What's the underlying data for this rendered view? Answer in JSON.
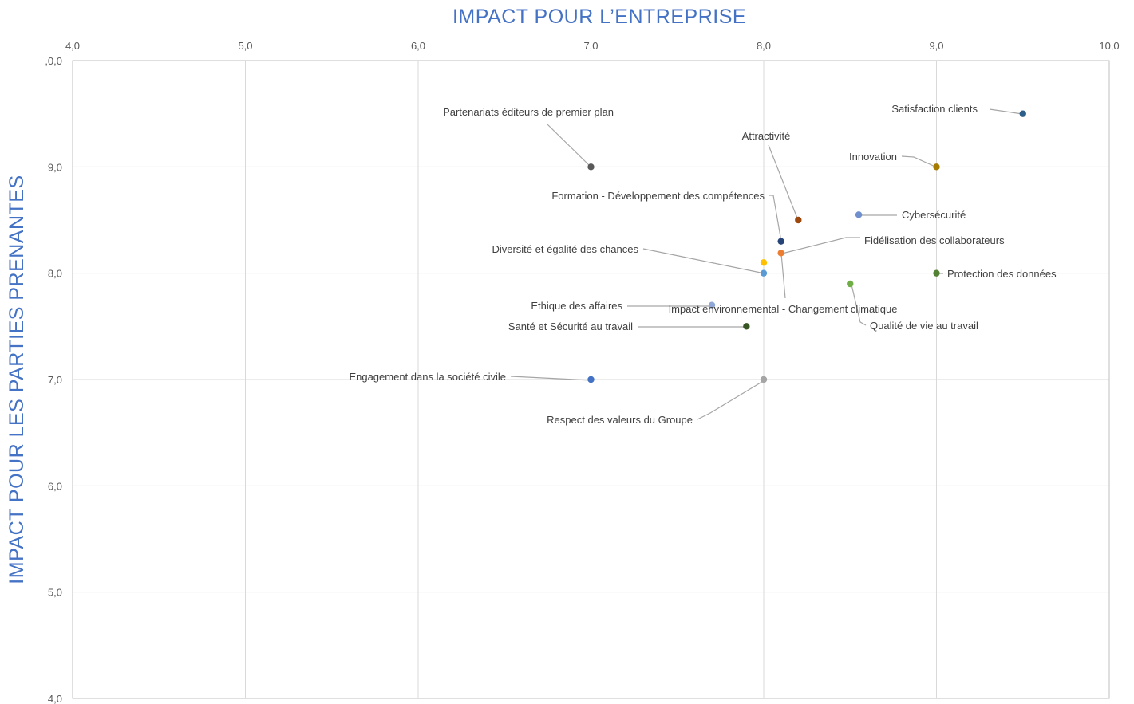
{
  "chart_data": {
    "type": "scatter",
    "title": "",
    "xlabel": "IMPACT POUR L’ENTREPRISE",
    "ylabel": "IMPACT POUR LES PARTIES PRENANTES",
    "xlim": [
      4,
      10
    ],
    "ylim": [
      4,
      10
    ],
    "x_ticks": [
      "4,0",
      "5,0",
      "6,0",
      "7,0",
      "8,0",
      "9,0",
      "10,0"
    ],
    "y_ticks": [
      "4,0",
      "5,0",
      "6,0",
      "7,0",
      "8,0",
      "9,0",
      ",0,0"
    ],
    "grid": true,
    "legend": "none",
    "points": [
      {
        "label": "Satisfaction clients",
        "x": 9.5,
        "y": 9.5,
        "color": "#2e5f8a"
      },
      {
        "label": "Partenariats éditeurs de premier plan",
        "x": 7.0,
        "y": 9.0,
        "color": "#595959"
      },
      {
        "label": "Innovation",
        "x": 9.0,
        "y": 9.0,
        "color": "#a57c00"
      },
      {
        "label": "Attractivité",
        "x": 8.2,
        "y": 8.5,
        "color": "#9e480e"
      },
      {
        "label": "Cybersécurité",
        "x": 8.55,
        "y": 8.55,
        "color": "#6f8fcf"
      },
      {
        "label": "Formation - Développement des compétences",
        "x": 8.1,
        "y": 8.3,
        "color": "#264478"
      },
      {
        "label": "Fidélisation des collaborateurs",
        "x": 8.1,
        "y": 8.19,
        "color": "#ed7d31"
      },
      {
        "label": "Diversité et égalité des chances",
        "x": 8.0,
        "y": 8.0,
        "color": "#5b9bd5"
      },
      {
        "label": "Impact environnemental - Changement climatique",
        "x": 8.0,
        "y": 8.1,
        "color": "#ffc000"
      },
      {
        "label": "Protection des données",
        "x": 9.0,
        "y": 8.0,
        "color": "#548235"
      },
      {
        "label": "Qualité de vie au travail",
        "x": 8.5,
        "y": 7.9,
        "color": "#70ad47"
      },
      {
        "label": "Ethique des affaires",
        "x": 7.7,
        "y": 7.7,
        "color": "#8fa8d8"
      },
      {
        "label": "Santé et Sécurité au travail",
        "x": 7.9,
        "y": 7.5,
        "color": "#375623"
      },
      {
        "label": "Engagement dans la société civile",
        "x": 7.0,
        "y": 7.0,
        "color": "#4472c4"
      },
      {
        "label": "Respect des valeurs du Groupe",
        "x": 8.0,
        "y": 7.0,
        "color": "#a5a5a5"
      }
    ]
  }
}
